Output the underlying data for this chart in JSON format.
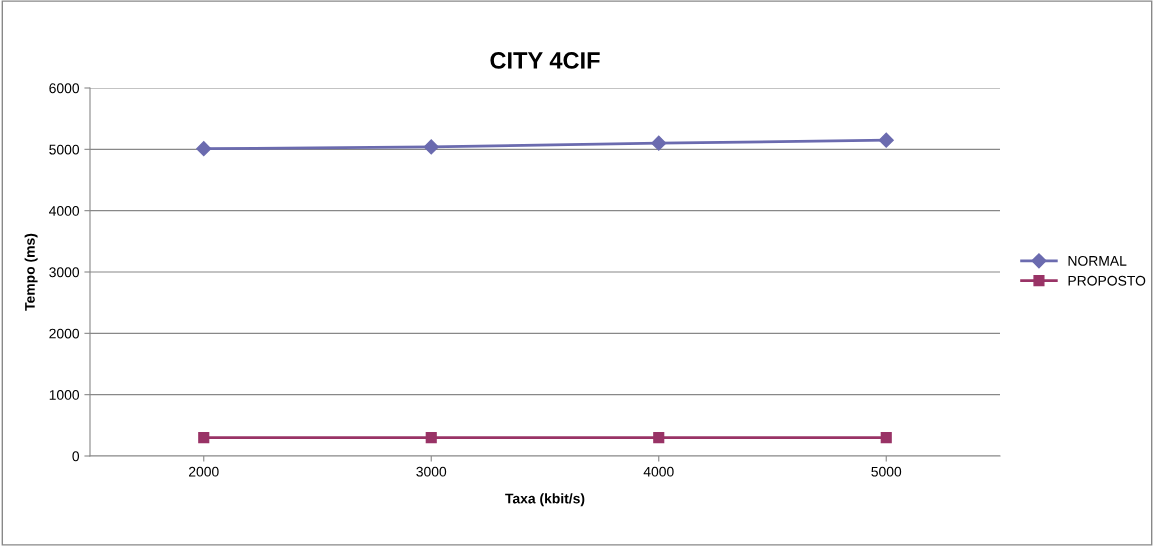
{
  "chart_data": {
    "type": "line",
    "title": "CITY 4CIF",
    "xlabel": "Taxa (kbit/s)",
    "ylabel": "Tempo (ms)",
    "categories": [
      "2000",
      "3000",
      "4000",
      "5000"
    ],
    "series": [
      {
        "name": "NORMAL",
        "color": "#6b6baf",
        "marker": "diamond",
        "values": [
          5010,
          5040,
          5100,
          5150
        ]
      },
      {
        "name": "PROPOSTO",
        "color": "#993366",
        "marker": "square",
        "values": [
          300,
          300,
          300,
          300
        ]
      }
    ],
    "ylim": [
      0,
      6000
    ],
    "yticks": [
      0,
      1000,
      2000,
      3000,
      4000,
      5000,
      6000
    ],
    "grid": "y",
    "legend": "right"
  }
}
